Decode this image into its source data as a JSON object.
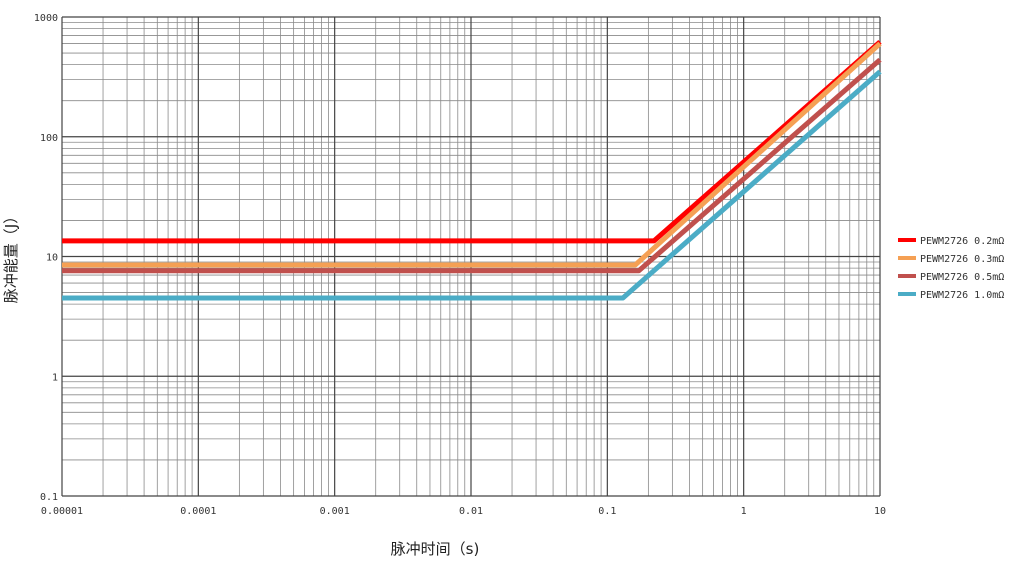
{
  "chart_data": {
    "type": "line",
    "title": "",
    "xlabel": "脉冲时间（s)",
    "ylabel": "脉冲能量（J）",
    "x_scale": "log",
    "y_scale": "log",
    "xlim": [
      1e-05,
      10
    ],
    "ylim": [
      0.1,
      1000
    ],
    "grid": true,
    "legend_position": "right",
    "x_ticks": [
      {
        "value": 1e-05,
        "label": "0.00001"
      },
      {
        "value": 0.0001,
        "label": "0.0001"
      },
      {
        "value": 0.001,
        "label": "0.001"
      },
      {
        "value": 0.01,
        "label": "0.01"
      },
      {
        "value": 0.1,
        "label": "0.1"
      },
      {
        "value": 1,
        "label": "1"
      },
      {
        "value": 10,
        "label": "10"
      }
    ],
    "y_ticks": [
      {
        "value": 0.1,
        "label": "0.1"
      },
      {
        "value": 1,
        "label": "1"
      },
      {
        "value": 10,
        "label": "10"
      },
      {
        "value": 100,
        "label": "100"
      },
      {
        "value": 1000,
        "label": "1000"
      }
    ],
    "series": [
      {
        "name": "PEWM2726 0.2mΩ",
        "color": "#ff0000",
        "x": [
          1e-05,
          0.22,
          10
        ],
        "y": [
          13.5,
          13.5,
          620
        ]
      },
      {
        "name": "PEWM2726 0.3mΩ",
        "color": "#f5a054",
        "x": [
          1e-05,
          0.16,
          10
        ],
        "y": [
          8.5,
          8.5,
          600
        ]
      },
      {
        "name": "PEWM2726 0.5mΩ",
        "color": "#c0504d",
        "x": [
          1e-05,
          0.17,
          10
        ],
        "y": [
          7.6,
          7.6,
          440
        ]
      },
      {
        "name": "PEWM2726 1.0mΩ",
        "color": "#4bacc6",
        "x": [
          1e-05,
          0.13,
          10
        ],
        "y": [
          4.5,
          4.5,
          350
        ]
      }
    ]
  }
}
